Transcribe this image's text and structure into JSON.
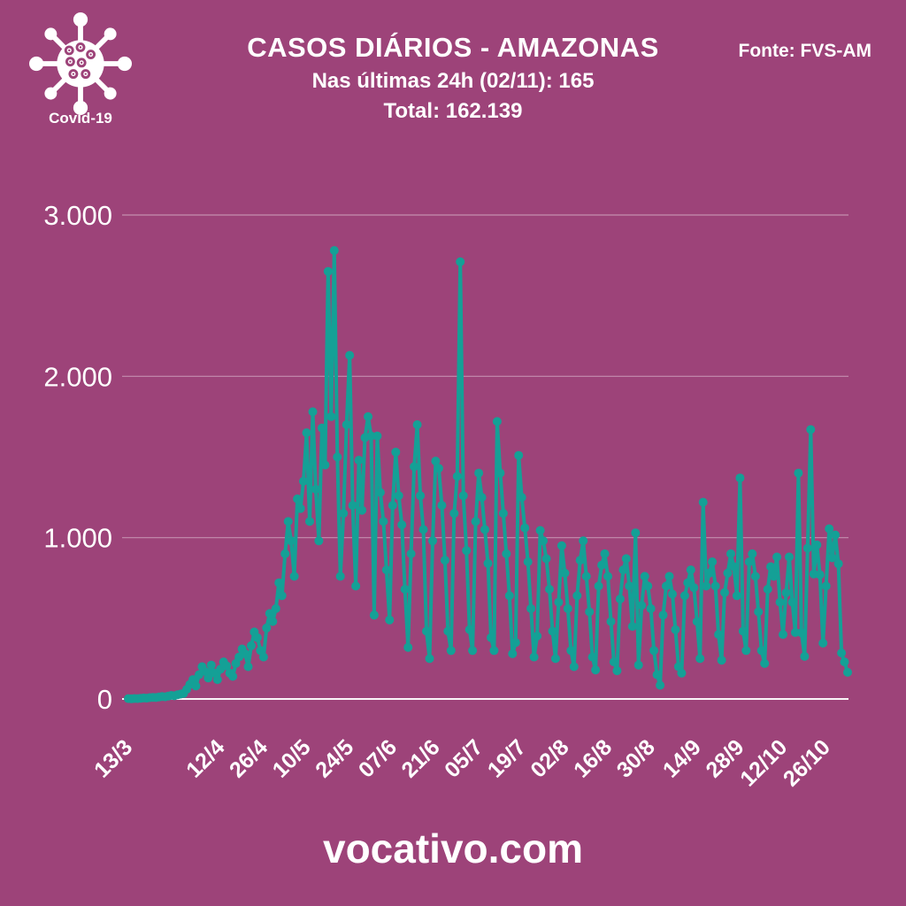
{
  "header": {
    "title": "CASOS DIÁRIOS - AMAZONAS",
    "subtitle": "Nas últimas 24h (02/11): 165",
    "total": "Total: 162.139",
    "source": "Fonte: FVS-AM",
    "badge_label": "Covid-19",
    "last_24h_value": 165,
    "total_value": "162.139"
  },
  "footer": {
    "site": "vocativo.com"
  },
  "colors": {
    "background": "#9d4379",
    "line": "#14a096",
    "text": "#ffffff",
    "grid": "#ffffff"
  },
  "icons": {
    "badge_icon": "covid-virus-icon"
  },
  "chart_data": {
    "type": "line",
    "title": "CASOS DIÁRIOS - AMAZONAS",
    "xlabel": "",
    "ylabel": "",
    "series_name": "casos diários",
    "start_date": "13/3",
    "end_date": "02/11",
    "grid": true,
    "legend": "none",
    "ylim": [
      0,
      3000
    ],
    "y_ticks": [
      0,
      1000,
      2000,
      3000
    ],
    "y_tick_labels": [
      "0",
      "1.000",
      "2.000",
      "3.000"
    ],
    "x_tick_labels": [
      "13/3",
      "12/4",
      "26/4",
      "10/5",
      "24/5",
      "07/6",
      "21/6",
      "05/7",
      "19/7",
      "02/8",
      "16/8",
      "30/8",
      "14/9",
      "28/9",
      "12/10",
      "26/10"
    ],
    "x_tick_day_index": [
      0,
      30,
      44,
      58,
      72,
      86,
      100,
      114,
      128,
      142,
      156,
      170,
      185,
      199,
      213,
      227
    ],
    "values": [
      2,
      1,
      3,
      2,
      4,
      6,
      5,
      8,
      10,
      9,
      12,
      15,
      13,
      18,
      22,
      20,
      26,
      30,
      34,
      60,
      90,
      120,
      80,
      150,
      200,
      170,
      130,
      210,
      160,
      120,
      185,
      230,
      205,
      160,
      140,
      220,
      260,
      310,
      280,
      200,
      330,
      415,
      380,
      300,
      260,
      440,
      530,
      480,
      560,
      720,
      640,
      900,
      1100,
      980,
      760,
      1240,
      1180,
      1350,
      1650,
      1100,
      1780,
      1300,
      980,
      1680,
      1450,
      2650,
      1750,
      2780,
      1500,
      760,
      1150,
      1700,
      2130,
      1200,
      700,
      1480,
      1170,
      1620,
      1750,
      1630,
      520,
      1630,
      1280,
      1100,
      800,
      490,
      1200,
      1530,
      1260,
      1080,
      680,
      320,
      900,
      1440,
      1700,
      1260,
      1050,
      420,
      250,
      980,
      1475,
      1430,
      1200,
      860,
      420,
      300,
      1150,
      1380,
      2710,
      1260,
      920,
      430,
      300,
      1100,
      1400,
      1250,
      1050,
      840,
      380,
      300,
      1720,
      1400,
      1150,
      900,
      640,
      280,
      350,
      1510,
      1250,
      1060,
      850,
      560,
      260,
      390,
      1045,
      980,
      870,
      680,
      420,
      250,
      600,
      950,
      780,
      560,
      300,
      200,
      640,
      860,
      980,
      760,
      540,
      260,
      180,
      700,
      830,
      900,
      760,
      480,
      230,
      175,
      620,
      800,
      870,
      700,
      450,
      1030,
      210,
      580,
      760,
      700,
      560,
      300,
      150,
      85,
      520,
      700,
      760,
      650,
      430,
      200,
      160,
      640,
      720,
      800,
      690,
      480,
      250,
      1220,
      700,
      780,
      850,
      700,
      400,
      240,
      660,
      780,
      900,
      820,
      640,
      1370,
      420,
      300,
      850,
      900,
      760,
      540,
      300,
      220,
      680,
      820,
      760,
      880,
      600,
      400,
      658,
      880,
      600,
      412,
      1400,
      410,
      264,
      935,
      1670,
      775,
      955,
      770,
      346,
      700,
      1055,
      875,
      1017,
      838,
      285,
      230,
      165
    ]
  }
}
